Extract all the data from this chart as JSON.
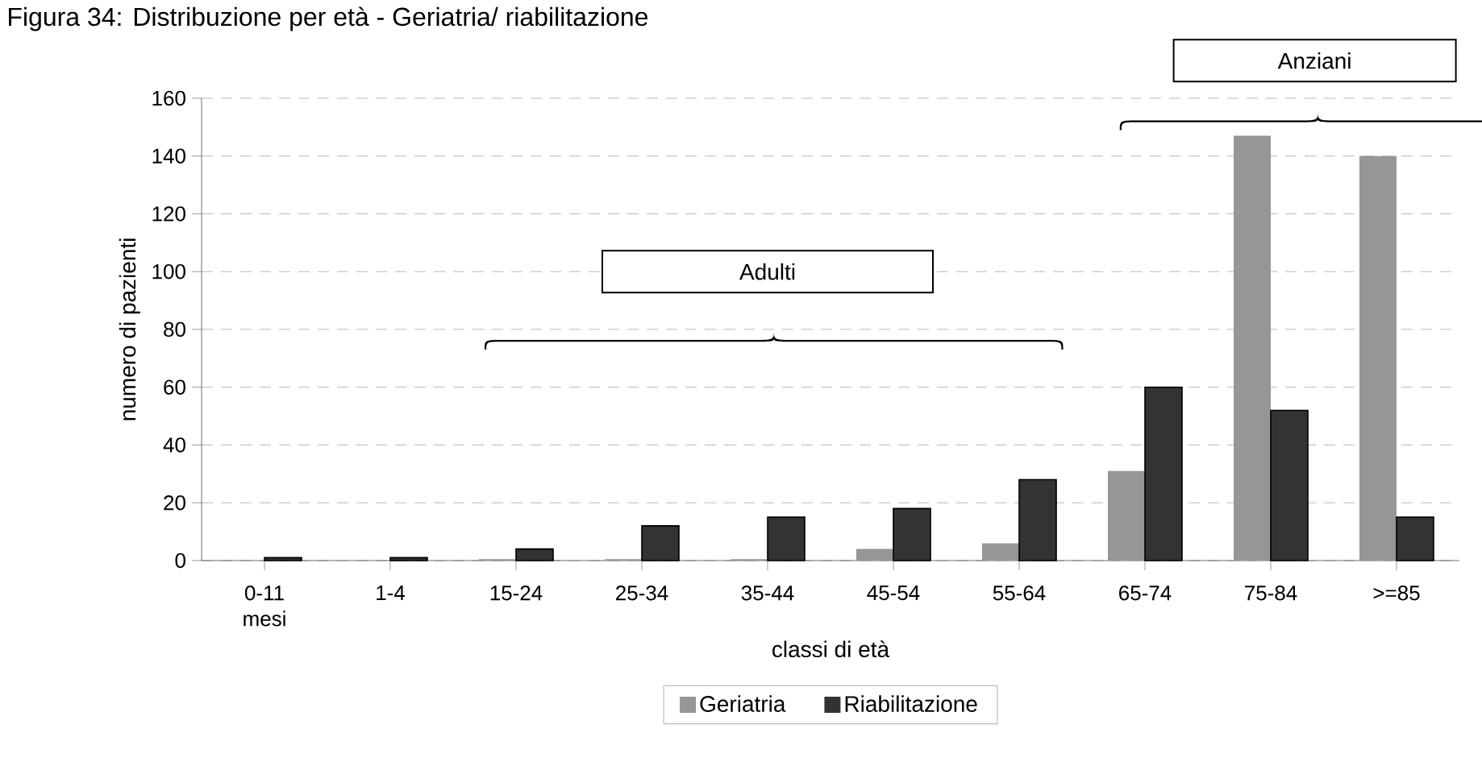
{
  "chart_data": {
    "type": "bar",
    "title": "Figura 34: Distribuzione per età - Geriatria/ riabilitazione",
    "xlabel": "classi di età",
    "ylabel": "numero di pazienti",
    "categories": [
      "0-11 mesi",
      "1-4",
      "15-24",
      "25-34",
      "35-44",
      "45-54",
      "55-64",
      "65-74",
      "75-84",
      ">=85"
    ],
    "series": [
      {
        "name": "Geriatria",
        "color": "#969696",
        "values": [
          0,
          0,
          0.5,
          0.5,
          0.5,
          4,
          6,
          31,
          147,
          140
        ]
      },
      {
        "name": "Riabilitazione",
        "color": "#333333",
        "values": [
          1,
          1,
          4,
          12,
          15,
          18,
          28,
          60,
          52,
          15
        ]
      }
    ],
    "ylim": [
      0,
      160
    ],
    "yticks": [
      0,
      20,
      40,
      60,
      80,
      100,
      120,
      140,
      160
    ],
    "grid": "y",
    "legend": "bottom",
    "annotations": [
      "Adulti",
      "Anziani"
    ]
  }
}
